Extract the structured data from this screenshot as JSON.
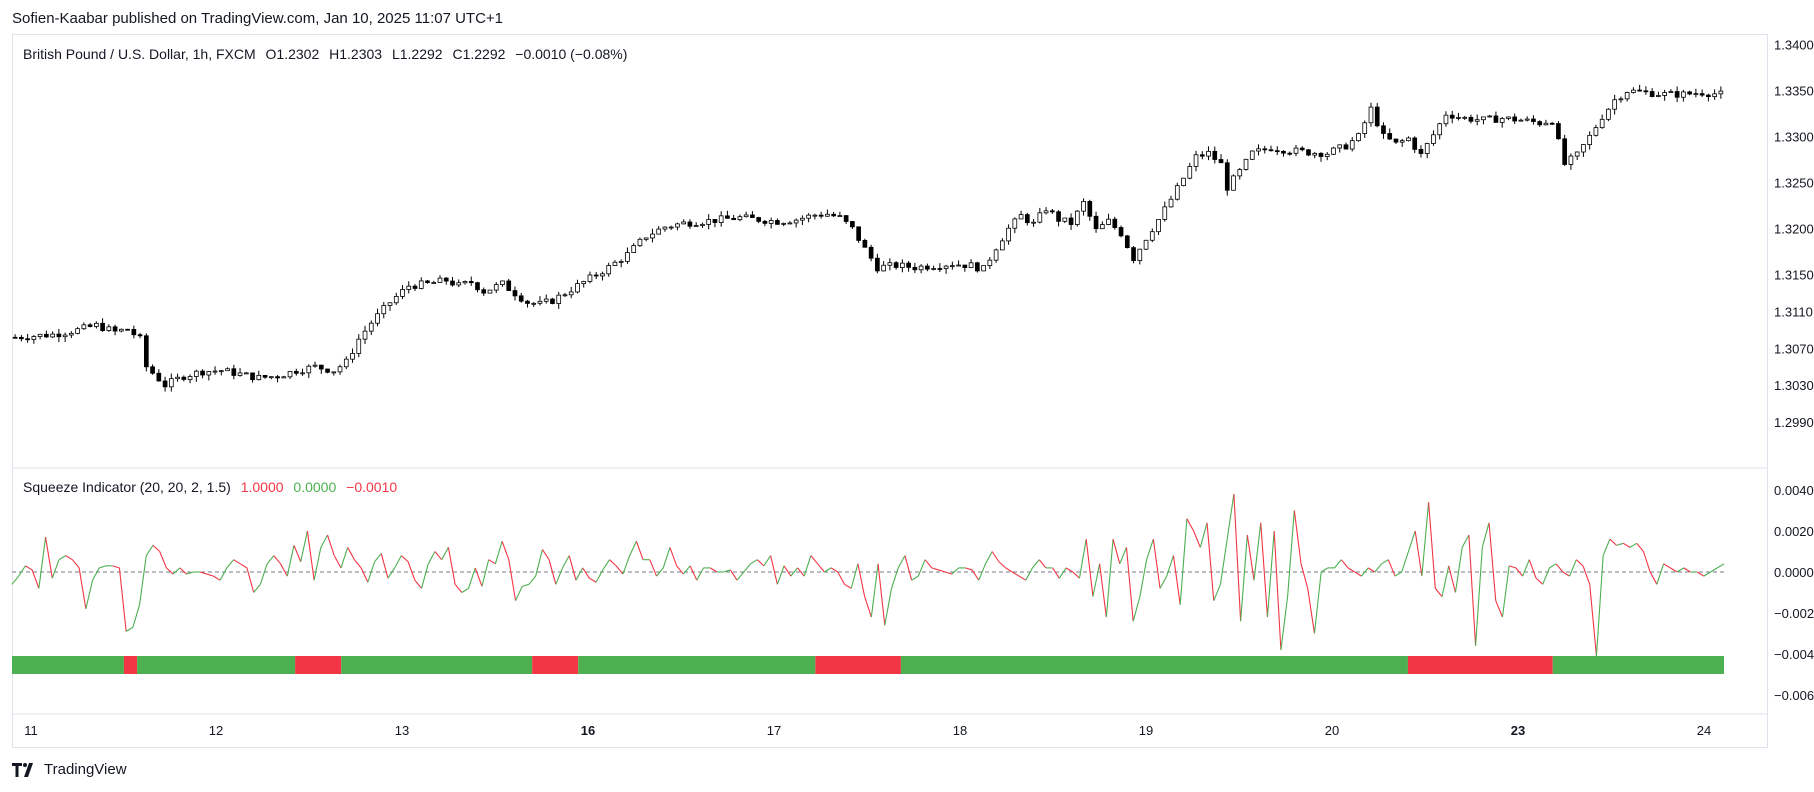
{
  "header": {
    "publisher_text": "Sofien-Kaabar published on TradingView.com, Jan 10, 2025 11:07 UTC+1"
  },
  "footer": {
    "brand": "TradingView"
  },
  "colors": {
    "up": "#4caf50",
    "down": "#f23645",
    "candle_up_fill": "#ffffff",
    "candle_down_fill": "#000000",
    "candle_stroke": "#000000",
    "text": "#131722",
    "zero_line": "#787b86"
  },
  "main_legend": {
    "symbol": "British Pound / U.S. Dollar, 1h, FXCM",
    "open": "O1.2302",
    "high": "H1.2303",
    "low": "L1.2292",
    "close": "C1.2292",
    "change": "−0.0010 (−0.08%)"
  },
  "indicator_legend": {
    "name": "Squeeze Indicator (20, 20, 2, 1.5)",
    "v1": "1.0000",
    "v2": "0.0000",
    "v3": "−0.0010"
  },
  "chart_data": [
    {
      "type": "candlestick",
      "title": "British Pound / U.S. Dollar, 1h, FXCM",
      "y_ticks": [
        "1.3400",
        "1.3350",
        "1.3300",
        "1.3250",
        "1.3200",
        "1.3150",
        "1.3110",
        "1.3070",
        "1.3030",
        "1.2990"
      ],
      "x_ticks": [
        {
          "label": "11",
          "bold": false
        },
        {
          "label": "12",
          "bold": false
        },
        {
          "label": "13",
          "bold": false
        },
        {
          "label": "16",
          "bold": true
        },
        {
          "label": "17",
          "bold": false
        },
        {
          "label": "18",
          "bold": false
        },
        {
          "label": "19",
          "bold": false
        },
        {
          "label": "20",
          "bold": false
        },
        {
          "label": "23",
          "bold": true
        },
        {
          "label": "24",
          "bold": false
        }
      ],
      "close_path": [
        [
          0,
          1.3082
        ],
        [
          6,
          1.3085
        ],
        [
          10,
          1.309
        ],
        [
          13,
          1.3095
        ],
        [
          16,
          1.3088
        ],
        [
          18,
          1.3091
        ],
        [
          20,
          1.308
        ],
        [
          21,
          1.305
        ],
        [
          24,
          1.303
        ],
        [
          27,
          1.304
        ],
        [
          30,
          1.3045
        ],
        [
          33,
          1.3046
        ],
        [
          36,
          1.3042
        ],
        [
          39,
          1.3038
        ],
        [
          42,
          1.304
        ],
        [
          45,
          1.3046
        ],
        [
          48,
          1.305
        ],
        [
          51,
          1.3046
        ],
        [
          53,
          1.3055
        ],
        [
          55,
          1.308
        ],
        [
          57,
          1.3098
        ],
        [
          60,
          1.312
        ],
        [
          63,
          1.3138
        ],
        [
          66,
          1.314
        ],
        [
          69,
          1.3144
        ],
        [
          71,
          1.3138
        ],
        [
          73,
          1.3142
        ],
        [
          75,
          1.3132
        ],
        [
          78,
          1.314
        ],
        [
          80,
          1.313
        ],
        [
          82,
          1.312
        ],
        [
          84,
          1.3118
        ],
        [
          86,
          1.3122
        ],
        [
          89,
          1.3134
        ],
        [
          92,
          1.3146
        ],
        [
          95,
          1.3158
        ],
        [
          98,
          1.3172
        ],
        [
          101,
          1.3192
        ],
        [
          104,
          1.3202
        ],
        [
          107,
          1.3206
        ],
        [
          110,
          1.3208
        ],
        [
          113,
          1.321
        ],
        [
          116,
          1.3212
        ],
        [
          119,
          1.321
        ],
        [
          122,
          1.3208
        ],
        [
          125,
          1.321
        ],
        [
          128,
          1.3215
        ],
        [
          130,
          1.3216
        ],
        [
          132,
          1.3212
        ],
        [
          134,
          1.32
        ],
        [
          136,
          1.3178
        ],
        [
          138,
          1.3158
        ],
        [
          141,
          1.316
        ],
        [
          144,
          1.3158
        ],
        [
          147,
          1.316
        ],
        [
          150,
          1.3162
        ],
        [
          153,
          1.316
        ],
        [
          155,
          1.3156
        ],
        [
          157,
          1.318
        ],
        [
          159,
          1.32
        ],
        [
          161,
          1.3214
        ],
        [
          163,
          1.3205
        ],
        [
          165,
          1.3222
        ],
        [
          167,
          1.321
        ],
        [
          169,
          1.3206
        ],
        [
          171,
          1.3228
        ],
        [
          173,
          1.3198
        ],
        [
          175,
          1.3208
        ],
        [
          177,
          1.3195
        ],
        [
          179,
          1.3168
        ],
        [
          181,
          1.319
        ],
        [
          183,
          1.321
        ],
        [
          185,
          1.3232
        ],
        [
          187,
          1.3255
        ],
        [
          189,
          1.3278
        ],
        [
          191,
          1.3282
        ],
        [
          193,
          1.327
        ],
        [
          194,
          1.3245
        ],
        [
          196,
          1.3262
        ],
        [
          198,
          1.3282
        ],
        [
          201,
          1.3288
        ],
        [
          204,
          1.3285
        ],
        [
          207,
          1.3283
        ],
        [
          210,
          1.3282
        ],
        [
          213,
          1.329
        ],
        [
          215,
          1.33
        ],
        [
          217,
          1.333
        ],
        [
          219,
          1.33
        ],
        [
          221,
          1.3292
        ],
        [
          223,
          1.3298
        ],
        [
          225,
          1.328
        ],
        [
          227,
          1.3302
        ],
        [
          229,
          1.3325
        ],
        [
          232,
          1.332
        ],
        [
          235,
          1.3318
        ],
        [
          238,
          1.332
        ],
        [
          241,
          1.3318
        ],
        [
          244,
          1.3315
        ],
        [
          246,
          1.3318
        ],
        [
          248,
          1.327
        ],
        [
          250,
          1.328
        ],
        [
          252,
          1.33
        ],
        [
          254,
          1.3322
        ],
        [
          256,
          1.334
        ],
        [
          258,
          1.335
        ],
        [
          261,
          1.3348
        ],
        [
          264,
          1.3346
        ],
        [
          267,
          1.3346
        ],
        [
          270,
          1.3348
        ],
        [
          273,
          1.3346
        ]
      ]
    },
    {
      "type": "line",
      "title": "Squeeze Indicator (20, 20, 2, 1.5)",
      "y_ticks": [
        "0.0040",
        "0.0020",
        "0.0000",
        "−0.0020",
        "−0.0040",
        "−0.0060"
      ],
      "y_tick_values": [
        0.004,
        0.002,
        0,
        -0.002,
        -0.004,
        -0.006
      ],
      "series": [
        {
          "values": [
            -0.0006,
            -0.0002,
            0.0003,
            0.0001,
            -0.0008,
            0.0017,
            -0.0003,
            0.0006,
            0.0008,
            0.0006,
            0.0002,
            -0.0018,
            -0.0004,
            0.0002,
            0.0003,
            0.0003,
            0.0002,
            -0.0029,
            -0.0027,
            -0.0016,
            0.0008,
            0.0013,
            0.001,
            0.0002,
            -0.0001,
            0.0002,
            -0.0001,
            0.0,
            0.0,
            -0.0001,
            -0.0002,
            -0.0004,
            0.0002,
            0.0006,
            0.0004,
            0.0002,
            -0.001,
            -0.0006,
            0.0004,
            0.0008,
            0.0004,
            -0.0002,
            0.0013,
            0.0005,
            0.002,
            -0.0004,
            0.0012,
            0.0018,
            0.0008,
            0.0002,
            0.0012,
            0.0006,
            0.0002,
            -0.0005,
            0.0005,
            0.0009,
            -0.0003,
            0.0002,
            0.0008,
            0.0005,
            -0.0004,
            -0.0008,
            0.0004,
            0.001,
            0.0006,
            0.0012,
            -0.0006,
            -0.001,
            -0.0008,
            0.0002,
            -0.0007,
            0.0006,
            0.0004,
            0.0015,
            0.0006,
            -0.0014,
            -0.0007,
            -0.0006,
            -0.0002,
            0.0011,
            0.0006,
            -0.0006,
            0.0002,
            0.0008,
            -0.0004,
            0.0002,
            -0.0003,
            -0.0005,
            0.0001,
            0.0006,
            0.0003,
            -0.0001,
            0.0008,
            0.0015,
            0.0006,
            0.0006,
            -0.0002,
            0.0002,
            0.0012,
            0.0003,
            -0.0001,
            0.0003,
            -0.0004,
            0.0002,
            0.0002,
            0.0,
            0.0,
            0.0001,
            -0.0004,
            0.0,
            0.0004,
            0.0006,
            0.0003,
            0.0008,
            -0.0006,
            0.0003,
            -0.0002,
            0.0002,
            -0.0002,
            0.0008,
            0.0004,
            0.0,
            0.0002,
            0.0,
            -0.0006,
            -0.0008,
            0.0004,
            -0.0012,
            -0.0022,
            0.0004,
            -0.0026,
            -0.0008,
            0.0002,
            0.0008,
            -0.0004,
            -0.0002,
            0.0006,
            0.0002,
            0.0001,
            0.0,
            -0.0001,
            0.0002,
            0.0002,
            0.0001,
            -0.0004,
            0.0004,
            0.001,
            0.0005,
            0.0002,
            0.0,
            -0.0002,
            -0.0004,
            0.0002,
            0.0006,
            0.0002,
            0.0002,
            -0.0003,
            0.0002,
            0.0,
            -0.0003,
            0.0016,
            -0.0012,
            0.0004,
            -0.0022,
            0.0016,
            0.0004,
            0.0012,
            -0.0024,
            -0.0012,
            0.0006,
            0.0016,
            -0.0008,
            -0.0002,
            0.0008,
            -0.0016,
            0.0026,
            0.002,
            0.0012,
            0.0024,
            -0.0014,
            -0.0006,
            0.0016,
            0.0038,
            -0.0024,
            0.0018,
            -0.0004,
            0.0024,
            -0.0022,
            0.002,
            -0.0038,
            -0.0012,
            0.003,
            0.0004,
            -0.0008,
            -0.003,
            0.0,
            0.0002,
            0.0002,
            0.0006,
            0.0002,
            0.0,
            -0.0002,
            0.0002,
            0.0,
            0.0004,
            0.0006,
            -0.0002,
            0.0,
            0.001,
            0.002,
            -0.0002,
            0.0034,
            -0.0008,
            -0.0012,
            0.0003,
            -0.001,
            0.0012,
            0.0018,
            -0.0036,
            0.0012,
            0.0024,
            -0.0014,
            -0.0022,
            0.0003,
            0.0002,
            -0.0002,
            0.0006,
            -0.0003,
            -0.0006,
            0.0002,
            0.0004,
            0.0,
            -0.0002,
            0.0006,
            0.0003,
            -0.0006,
            -0.0041,
            0.0008,
            0.0016,
            0.0013,
            0.0014,
            0.0012,
            0.0014,
            0.001,
            0.0,
            -0.0006,
            0.0004,
            0.0002,
            0.0,
            0.0002,
            0.0,
            0.0,
            -0.0002,
            0.0,
            0.0002,
            0.0004
          ]
        }
      ],
      "squeeze_bar": [
        {
          "from": 0,
          "to": 17,
          "state": "up"
        },
        {
          "from": 17,
          "to": 19,
          "state": "down"
        },
        {
          "from": 19,
          "to": 43,
          "state": "up"
        },
        {
          "from": 43,
          "to": 50,
          "state": "down"
        },
        {
          "from": 50,
          "to": 79,
          "state": "up"
        },
        {
          "from": 79,
          "to": 86,
          "state": "down"
        },
        {
          "from": 86,
          "to": 122,
          "state": "up"
        },
        {
          "from": 122,
          "to": 135,
          "state": "down"
        },
        {
          "from": 135,
          "to": 212,
          "state": "up"
        },
        {
          "from": 212,
          "to": 234,
          "state": "down"
        },
        {
          "from": 234,
          "to": 260,
          "state": "up"
        }
      ]
    }
  ]
}
